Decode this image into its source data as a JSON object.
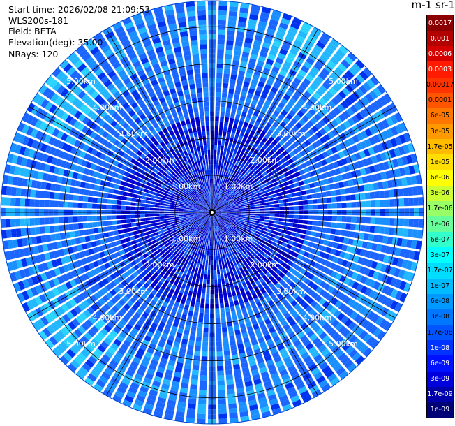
{
  "header": {
    "start_time": "Start time: 2026/02/08 21:09:53",
    "instrument": "WLS200s-181",
    "field": "Field: BETA",
    "elevation": "Elevation(deg): 35.00",
    "nrays": "NRays: 120"
  },
  "colorbar": {
    "units_label": "m-1 sr-1",
    "labels": [
      "0.0017",
      "0.001",
      "0.0006",
      "0.0003",
      "0.00017",
      "0.0001",
      "6e-05",
      "3e-05",
      "1.7e-05",
      "1e-05",
      "6e-06",
      "3e-06",
      "1.7e-06",
      "1e-06",
      "6e-07",
      "3e-07",
      "1.7e-07",
      "1e-07",
      "6e-08",
      "3e-08",
      "1.7e-08",
      "1e-08",
      "6e-09",
      "3e-09",
      "1.7e-09",
      "1e-09"
    ],
    "colors": [
      "#8b0000",
      "#b30000",
      "#d40000",
      "#ff1a00",
      "#ff3300",
      "#ff5500",
      "#ff7700",
      "#ff9900",
      "#ffbb00",
      "#ffdd00",
      "#ffff00",
      "#ccff33",
      "#99ff66",
      "#66ff99",
      "#33ffcc",
      "#00ffff",
      "#00ddff",
      "#00bbff",
      "#0099ff",
      "#0077ff",
      "#0055ff",
      "#0033ff",
      "#0011ff",
      "#0000dd",
      "#0000aa",
      "#000077"
    ]
  },
  "chart_data": {
    "type": "heatmap",
    "projection": "polar (PPI)",
    "field": "BETA",
    "elevation_deg": 35.0,
    "nrays": 120,
    "azimuth_range_deg": [
      0,
      360
    ],
    "range_rings_km": [
      1,
      2,
      3,
      4,
      5
    ],
    "ring_labels": [
      "1.00km",
      "2.00km",
      "3.00km",
      "4.00km",
      "5.00km"
    ],
    "max_range_km": 5.7,
    "value_range": [
      1e-09,
      0.0017
    ],
    "dominant_value_range": [
      1e-08,
      1e-07
    ],
    "enhanced_sectors_deg": [
      [
        295,
        320
      ],
      [
        215,
        245
      ],
      [
        20,
        45
      ]
    ],
    "grid": true
  }
}
